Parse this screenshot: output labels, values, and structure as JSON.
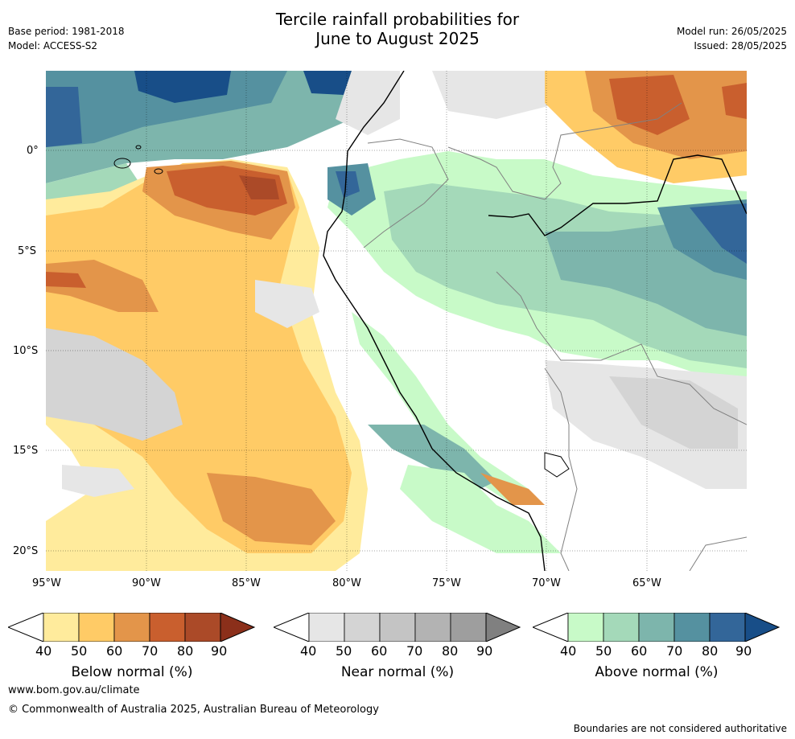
{
  "title_line1": "Tercile rainfall probabilities for",
  "title_line2": "June to August 2025",
  "meta": {
    "base_period": "Base period: 1981-2018",
    "model": "Model: ACCESS-S2",
    "model_run": "Model run: 26/05/2025",
    "issued": "Issued: 28/05/2025"
  },
  "map": {
    "lat_labels": [
      "0°",
      "5°S",
      "10°S",
      "15°S",
      "20°S"
    ],
    "lon_labels": [
      "95°W",
      "90°W",
      "85°W",
      "80°W",
      "75°W",
      "70°W",
      "65°W"
    ]
  },
  "colorbars": [
    {
      "label": "Below normal (%)",
      "ticks": [
        "40",
        "50",
        "60",
        "70",
        "80",
        "90"
      ],
      "colors": [
        "#ffeb9c",
        "#ffcb66",
        "#e3954a",
        "#c95f2e",
        "#ab4a28",
        "#8b2f1a"
      ]
    },
    {
      "label": "Near normal (%)",
      "ticks": [
        "40",
        "50",
        "60",
        "70",
        "80",
        "90"
      ],
      "colors": [
        "#e6e6e6",
        "#d4d4d4",
        "#c4c4c4",
        "#b3b3b3",
        "#9e9e9e",
        "#808080"
      ]
    },
    {
      "label": "Above normal (%)",
      "ticks": [
        "40",
        "50",
        "60",
        "70",
        "80",
        "90"
      ],
      "colors": [
        "#c8fac8",
        "#a4d9b9",
        "#7db5ac",
        "#5591a0",
        "#336699",
        "#184e88"
      ]
    }
  ],
  "footer": {
    "link": "www.bom.gov.au/climate",
    "copyright": "© Commonwealth of Australia 2025, Australian Bureau of Meteorology",
    "note": "Boundaries are not considered authoritative"
  }
}
